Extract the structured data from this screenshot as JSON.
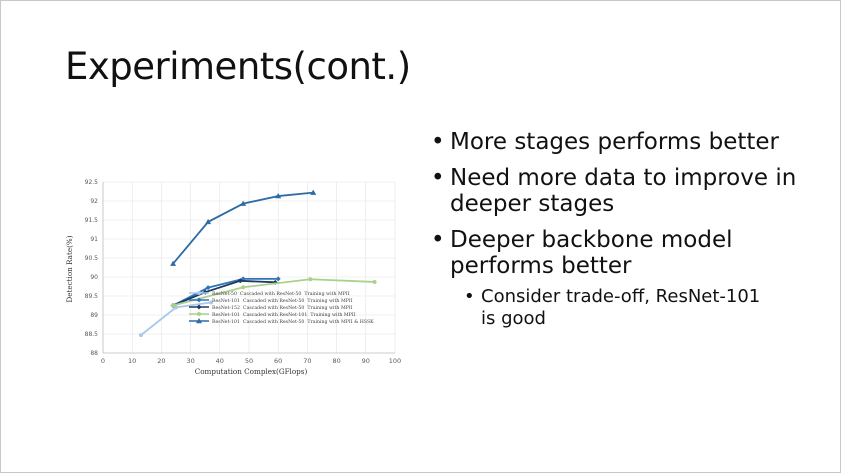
{
  "slide": {
    "title": "Experiments(cont.)",
    "bullets": [
      "More stages performs better",
      "Need more data to improve in deeper stages",
      "Deeper backbone model performs better"
    ],
    "sub_bullets": [
      "Consider trade-off, ResNet-101 is good"
    ],
    "bullet_char": "•"
  },
  "chart_data": {
    "type": "line",
    "xlabel": "Computation Complex(GFlops)",
    "ylabel": "Detection Rate(%)",
    "xlim": [
      0,
      100
    ],
    "ylim": [
      88,
      92.5
    ],
    "xticks": [
      0,
      10,
      20,
      30,
      40,
      50,
      60,
      70,
      80,
      90,
      100
    ],
    "yticks": [
      88,
      88.5,
      89,
      89.5,
      90,
      90.5,
      91,
      91.5,
      92,
      92.5
    ],
    "ytick_labels": [
      "88",
      "88.5",
      "89",
      "89.5",
      "90",
      "90.5",
      "91",
      "91.5",
      "92",
      "92.5"
    ],
    "grid": true,
    "legend_position": "bottom-right inside plot",
    "series": [
      {
        "name": "ResNet-50  Cascaded with ResNet-50  Training with MPII",
        "color": "#a9c8ea",
        "marker": "circle",
        "x": [
          13,
          25,
          37
        ],
        "y": [
          88.47,
          89.2,
          89.33
        ]
      },
      {
        "name": "ResNet-101  Cascaded with ResNet-50  Training with MPII",
        "color": "#2e75b6",
        "marker": "diamond",
        "x": [
          24,
          36,
          48,
          60
        ],
        "y": [
          89.25,
          89.72,
          89.95,
          89.95
        ]
      },
      {
        "name": "ResNet-152  Cascaded with ResNet-50  Training with MPII",
        "color": "#1f3864",
        "marker": "diamond",
        "x": [
          24,
          35,
          47,
          59
        ],
        "y": [
          89.25,
          89.6,
          89.9,
          89.86
        ]
      },
      {
        "name": "ResNet-101  Cascaded with ResNet-101  Training with MPII",
        "color": "#a9d18e",
        "marker": "circle",
        "x": [
          24,
          48,
          71,
          93
        ],
        "y": [
          89.25,
          89.73,
          89.94,
          89.87
        ]
      },
      {
        "name": "ResNet-101  Cascaded with ResNet-50  Training with MPII & HSSK",
        "color": "#2e6ca4",
        "marker": "triangle",
        "x": [
          24,
          36,
          48,
          60,
          72
        ],
        "y": [
          90.35,
          91.45,
          91.93,
          92.13,
          92.22
        ]
      }
    ]
  }
}
